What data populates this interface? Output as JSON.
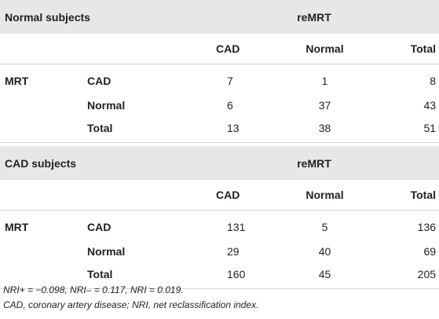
{
  "sections": [
    {
      "title": "Normal subjects",
      "group_header": "reMRT",
      "col_headers": [
        "CAD",
        "Normal",
        "Total"
      ],
      "row_group_label": "MRT",
      "rows": [
        {
          "label": "CAD",
          "values": [
            "7",
            "1",
            "8"
          ]
        },
        {
          "label": "Normal",
          "values": [
            "6",
            "37",
            "43"
          ]
        },
        {
          "label": "Total",
          "values": [
            "13",
            "38",
            "51"
          ]
        }
      ]
    },
    {
      "title": "CAD subjects",
      "group_header": "reMRT",
      "col_headers": [
        "CAD",
        "Normal",
        "Total"
      ],
      "row_group_label": "MRT",
      "rows": [
        {
          "label": "CAD",
          "values": [
            "131",
            "5",
            "136"
          ]
        },
        {
          "label": "Normal",
          "values": [
            "29",
            "40",
            "69"
          ]
        },
        {
          "label": "Total",
          "values": [
            "160",
            "45",
            "205"
          ]
        }
      ]
    }
  ],
  "footnotes": {
    "nri": "NRI+ = −0.098, NRI– = 0.117, NRI = 0.019.",
    "abbrev": "CAD, coronary artery disease; NRI, net reclassification index."
  },
  "colors": {
    "header_band": "#e6e7e8",
    "rule": "#d1d3d4",
    "text": "#231f20"
  }
}
